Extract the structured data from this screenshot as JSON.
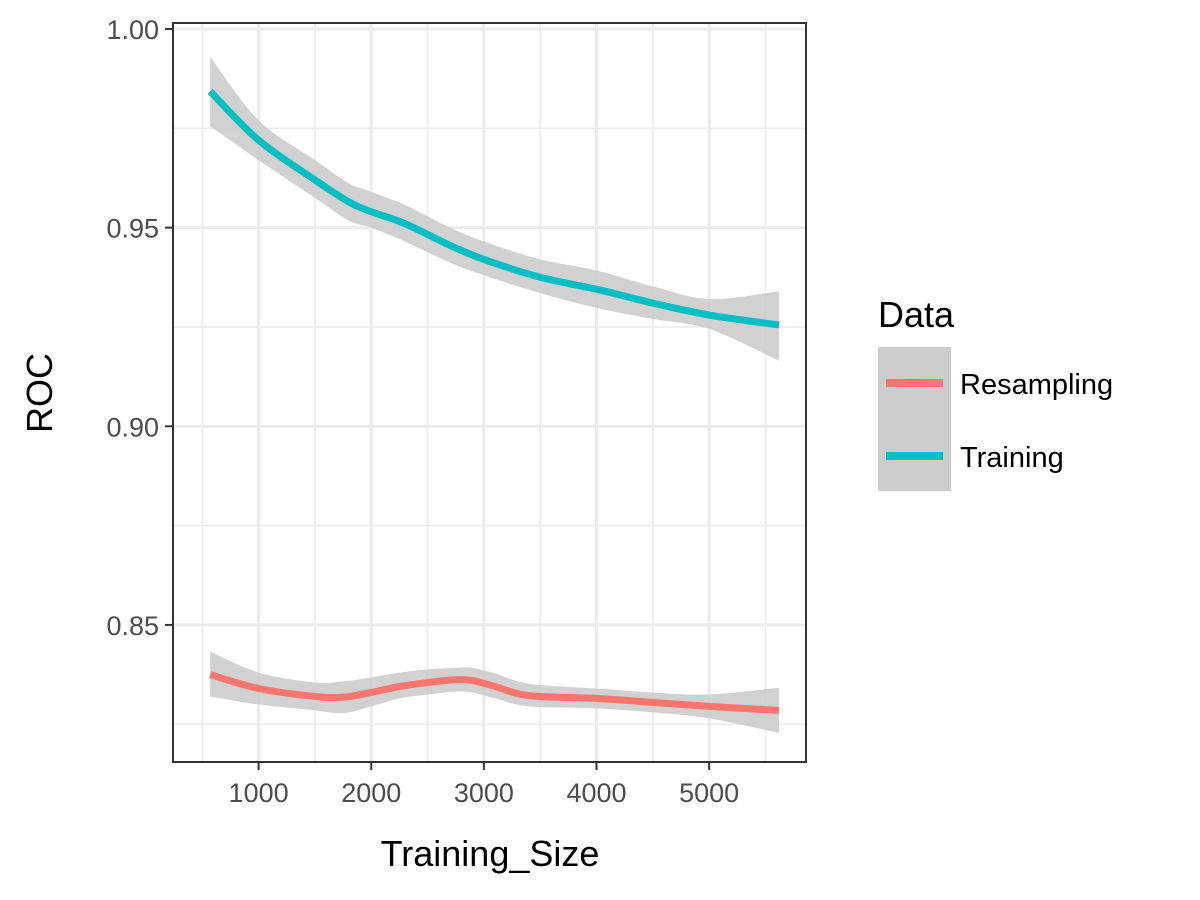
{
  "chart_data": {
    "type": "line",
    "xlabel": "Training_Size",
    "ylabel": "ROC",
    "xlim": [
      240,
      5860
    ],
    "ylim": [
      0.8155,
      1.0015
    ],
    "x_ticks": [
      1000,
      2000,
      3000,
      4000,
      5000
    ],
    "x_tick_labels": [
      "1000",
      "2000",
      "3000",
      "4000",
      "5000"
    ],
    "y_ticks": [
      0.85,
      0.9,
      0.95,
      1.0
    ],
    "y_tick_labels": [
      "0.85",
      "0.90",
      "0.95",
      "1.00"
    ],
    "grid": true,
    "legend": {
      "title": "Data",
      "placement": "right"
    },
    "series": [
      {
        "name": "Resampling",
        "color": "#F8766D",
        "x": [
          570,
          1000,
          1500,
          1750,
          2000,
          2250,
          2500,
          2750,
          2900,
          3100,
          3400,
          4000,
          4500,
          5000,
          5620
        ],
        "y": [
          0.8375,
          0.834,
          0.832,
          0.8318,
          0.833,
          0.8345,
          0.8355,
          0.8362,
          0.836,
          0.8345,
          0.8322,
          0.8315,
          0.8305,
          0.8295,
          0.8285
        ],
        "ci_lower": [
          0.832,
          0.83,
          0.8285,
          0.8278,
          0.8295,
          0.8315,
          0.8325,
          0.8332,
          0.833,
          0.8315,
          0.8295,
          0.829,
          0.828,
          0.8265,
          0.8228
        ],
        "ci_upper": [
          0.8433,
          0.838,
          0.8355,
          0.8358,
          0.8368,
          0.838,
          0.8388,
          0.8392,
          0.8392,
          0.8378,
          0.8352,
          0.834,
          0.833,
          0.8325,
          0.8342
        ]
      },
      {
        "name": "Training",
        "color": "#00BFC4",
        "x": [
          570,
          1000,
          1500,
          1800,
          2000,
          2300,
          2700,
          3000,
          3500,
          4000,
          4500,
          5000,
          5620
        ],
        "y": [
          0.9843,
          0.972,
          0.962,
          0.9565,
          0.954,
          0.951,
          0.9455,
          0.942,
          0.9375,
          0.9345,
          0.931,
          0.928,
          0.9255
        ],
        "ci_lower": [
          0.9755,
          0.967,
          0.9575,
          0.9518,
          0.95,
          0.9465,
          0.9412,
          0.938,
          0.9335,
          0.9298,
          0.927,
          0.9245,
          0.9165
        ],
        "ci_upper": [
          0.993,
          0.977,
          0.967,
          0.9612,
          0.959,
          0.9557,
          0.95,
          0.9465,
          0.942,
          0.9392,
          0.9352,
          0.932,
          0.934
        ]
      }
    ],
    "ci_color": "#cccccc"
  }
}
